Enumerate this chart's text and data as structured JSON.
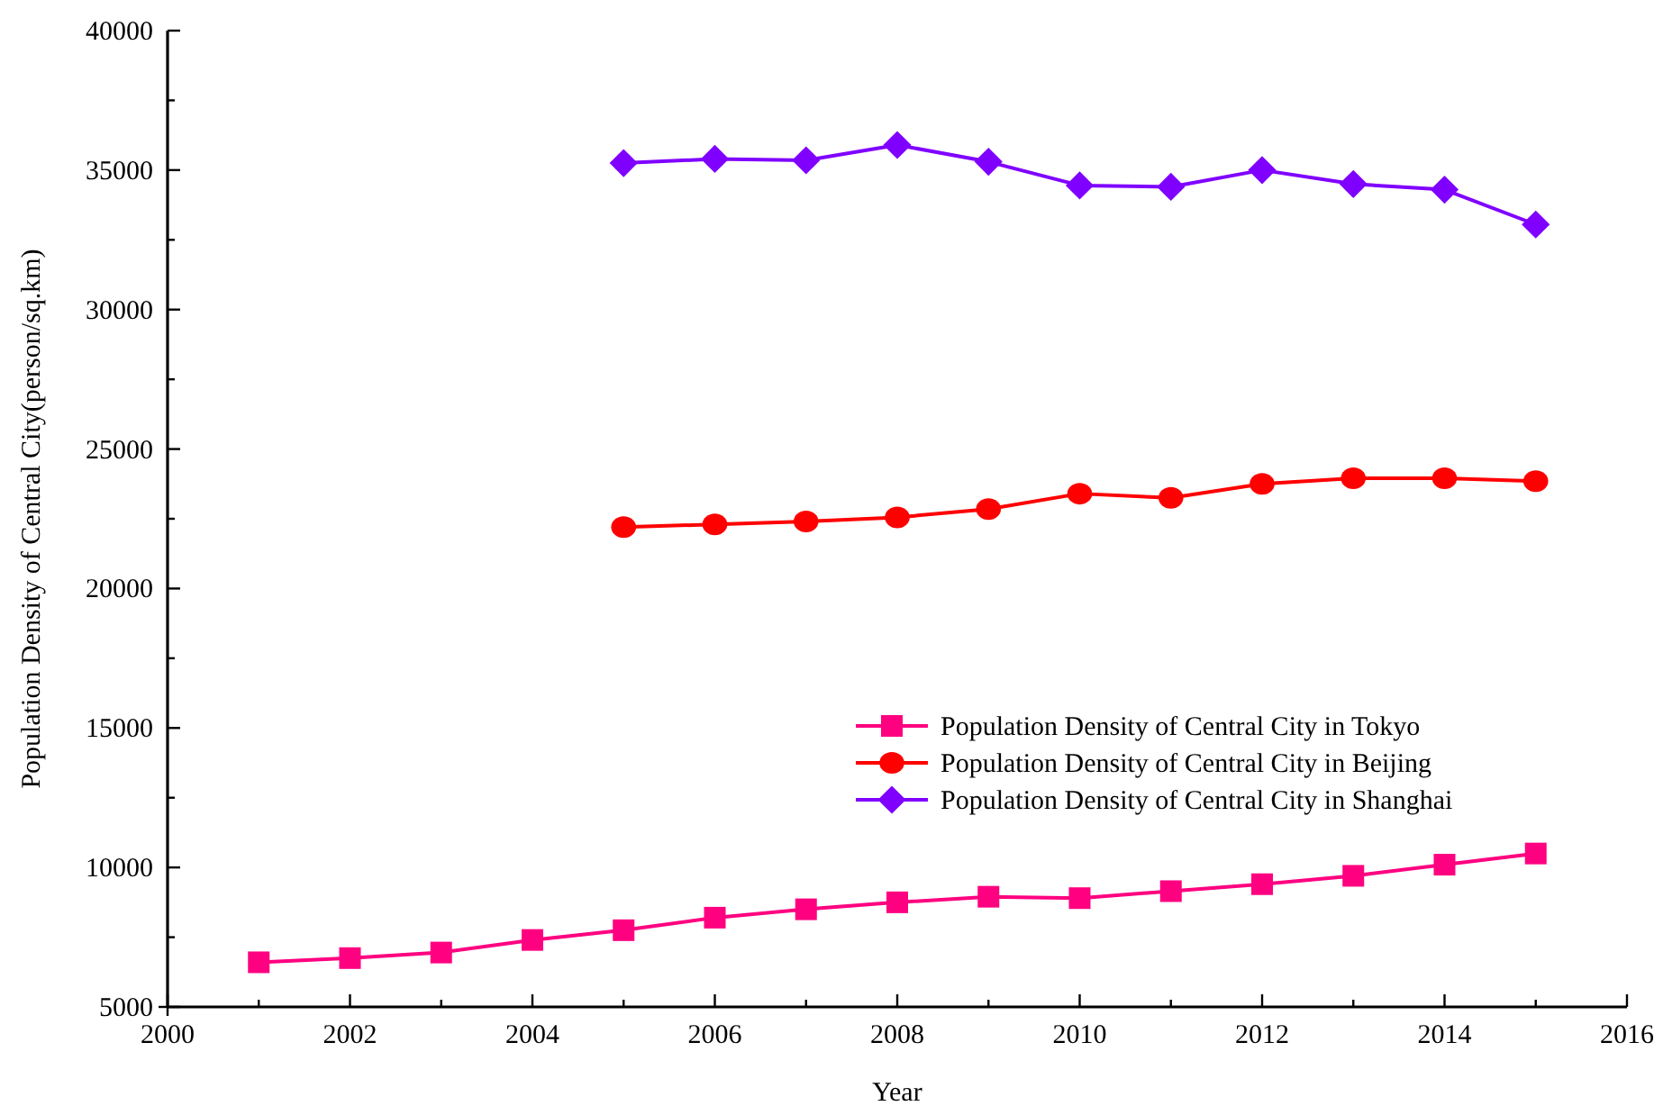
{
  "chart_data": {
    "type": "line",
    "xlabel": "Year",
    "ylabel": "Population Density of Central City(person/sq.km)",
    "xlim": [
      2000,
      2016
    ],
    "xticks": [
      2000,
      {
        "value": 2001,
        "label": null
      },
      2002,
      {
        "value": 2003,
        "label": null
      },
      2004,
      {
        "value": 2005,
        "label": null
      },
      2006,
      {
        "value": 2007,
        "label": null
      },
      2008,
      {
        "value": 2009,
        "label": null
      },
      2010,
      {
        "value": 2011,
        "label": null
      },
      2012,
      {
        "value": 2013,
        "label": null
      },
      2014,
      {
        "value": 2015,
        "label": null
      },
      2016
    ],
    "ylim": [
      5000,
      40000
    ],
    "yticks": [
      5000,
      {
        "value": 7500,
        "label": null
      },
      10000,
      {
        "value": 12500,
        "label": null
      },
      15000,
      {
        "value": 17500,
        "label": null
      },
      20000,
      {
        "value": 22500,
        "label": null
      },
      25000,
      {
        "value": 27500,
        "label": null
      },
      30000,
      {
        "value": 32500,
        "label": null
      },
      35000,
      {
        "value": 37500,
        "label": null
      },
      40000
    ],
    "grid": false,
    "legend": "right",
    "line_style": "solid",
    "series": [
      {
        "name": "Population Density of Central City in Tokyo",
        "color": "#ff0080",
        "marker": "square",
        "x": [
          2001,
          2002,
          2003,
          2004,
          2005,
          2006,
          2007,
          2008,
          2009,
          2010,
          2011,
          2012,
          2013,
          2014,
          2015
        ],
        "values": [
          6600,
          6750,
          6950,
          7400,
          7750,
          8200,
          8500,
          8750,
          8950,
          8900,
          9150,
          9400,
          9700,
          10100,
          10500
        ]
      },
      {
        "name": "Population Density of Central City in Beijing",
        "color": "#ff0000",
        "marker": "circle",
        "x": [
          2005,
          2006,
          2007,
          2008,
          2009,
          2010,
          2011,
          2012,
          2013,
          2014,
          2015
        ],
        "values": [
          22200,
          22300,
          22400,
          22550,
          22850,
          23400,
          23250,
          23750,
          23950,
          23950,
          23850
        ]
      },
      {
        "name": "Population Density of Central City in Shanghai",
        "color": "#8000ff",
        "marker": "diamond",
        "x": [
          2005,
          2006,
          2007,
          2008,
          2009,
          2010,
          2011,
          2012,
          2013,
          2014,
          2015
        ],
        "values": [
          35250,
          35400,
          35350,
          35900,
          35300,
          34450,
          34400,
          35000,
          34500,
          34300,
          33050
        ]
      }
    ]
  }
}
